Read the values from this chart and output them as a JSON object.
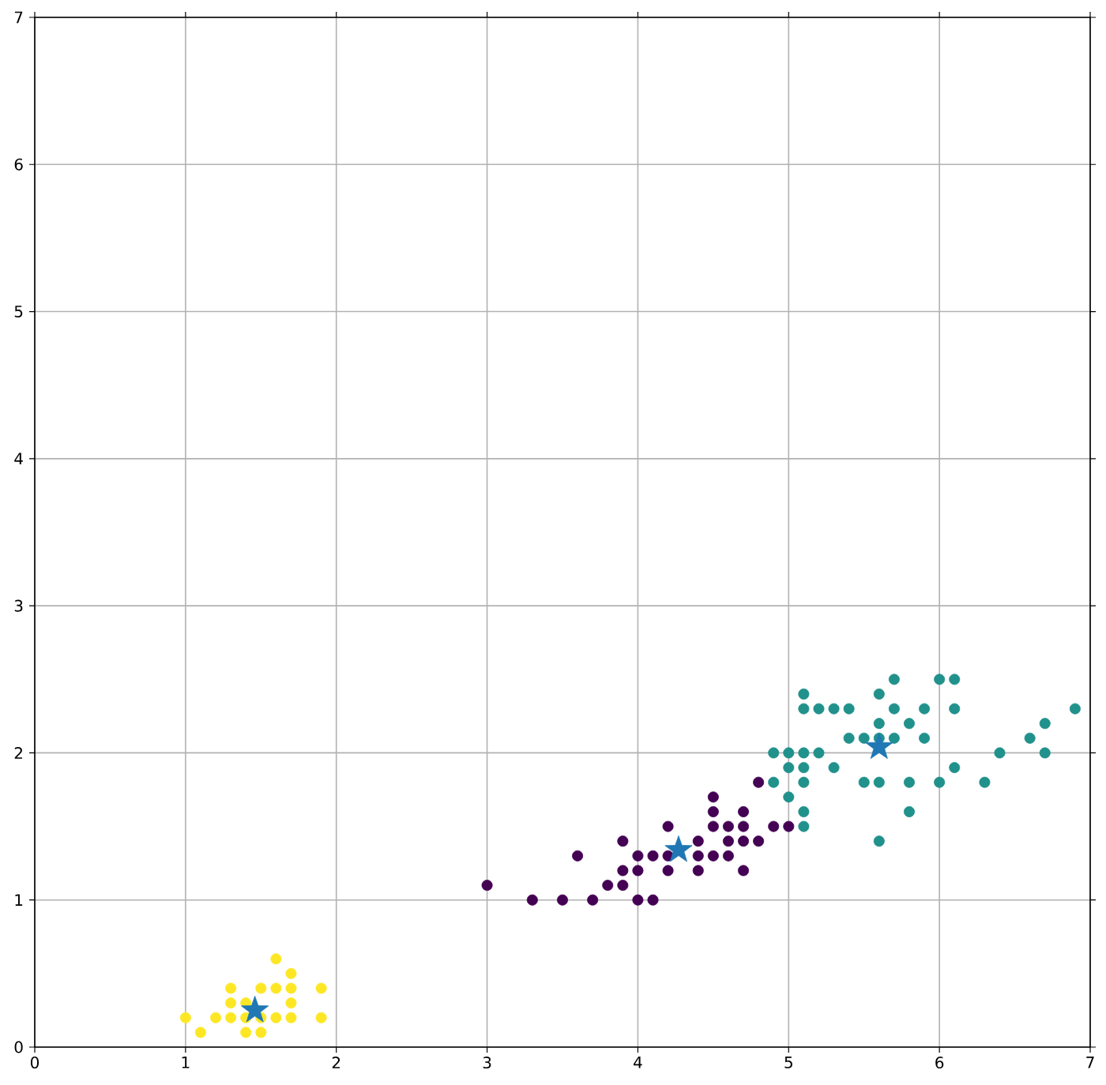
{
  "chart_data": {
    "type": "scatter",
    "xlim": [
      0,
      7
    ],
    "ylim": [
      0,
      7
    ],
    "xticks": [
      0,
      1,
      2,
      3,
      4,
      5,
      6,
      7
    ],
    "yticks": [
      0,
      1,
      2,
      3,
      4,
      5,
      6,
      7
    ],
    "grid": true,
    "marker": "circle",
    "series": [
      {
        "color": "#fde725",
        "x": [
          1.0,
          1.1,
          1.2,
          1.3,
          1.3,
          1.3,
          1.4,
          1.4,
          1.4,
          1.5,
          1.5,
          1.5,
          1.6,
          1.6,
          1.6,
          1.7,
          1.7,
          1.7,
          1.7,
          1.9,
          1.9
        ],
        "values": [
          0.2,
          0.1,
          0.2,
          0.2,
          0.3,
          0.4,
          0.2,
          0.3,
          0.1,
          0.4,
          0.2,
          0.1,
          0.6,
          0.4,
          0.2,
          0.5,
          0.4,
          0.3,
          0.2,
          0.4,
          0.2
        ]
      },
      {
        "color": "#440154",
        "x": [
          3.0,
          3.3,
          3.5,
          3.6,
          3.7,
          3.8,
          3.9,
          3.9,
          3.9,
          4.0,
          4.0,
          4.0,
          4.1,
          4.1,
          4.2,
          4.2,
          4.2,
          4.4,
          4.4,
          4.4,
          4.5,
          4.5,
          4.5,
          4.5,
          4.6,
          4.6,
          4.6,
          4.7,
          4.7,
          4.7,
          4.7,
          4.8,
          4.8,
          4.9,
          5.0
        ],
        "values": [
          1.1,
          1.0,
          1.0,
          1.3,
          1.0,
          1.1,
          1.1,
          1.2,
          1.4,
          1.0,
          1.2,
          1.3,
          1.0,
          1.3,
          1.2,
          1.3,
          1.5,
          1.2,
          1.3,
          1.4,
          1.3,
          1.5,
          1.6,
          1.7,
          1.3,
          1.4,
          1.5,
          1.2,
          1.4,
          1.5,
          1.6,
          1.4,
          1.8,
          1.5,
          1.5
        ]
      },
      {
        "color": "#21918c",
        "x": [
          4.9,
          4.9,
          5.0,
          5.0,
          5.0,
          5.1,
          5.1,
          5.1,
          5.1,
          5.1,
          5.1,
          5.1,
          5.2,
          5.2,
          5.3,
          5.3,
          5.4,
          5.4,
          5.5,
          5.5,
          5.6,
          5.6,
          5.6,
          5.6,
          5.6,
          5.7,
          5.7,
          5.7,
          5.8,
          5.8,
          5.8,
          5.9,
          5.9,
          6.0,
          6.0,
          6.1,
          6.1,
          6.1,
          6.3,
          6.4,
          6.6,
          6.7,
          6.7,
          6.9
        ],
        "values": [
          2.0,
          1.8,
          2.0,
          1.9,
          1.7,
          2.4,
          2.3,
          2.0,
          1.9,
          1.8,
          1.6,
          1.5,
          2.3,
          2.0,
          2.3,
          1.9,
          2.3,
          2.1,
          2.1,
          1.8,
          2.4,
          2.2,
          2.1,
          1.8,
          1.4,
          2.5,
          2.3,
          2.1,
          2.2,
          1.8,
          1.6,
          2.3,
          2.1,
          2.5,
          1.8,
          2.5,
          2.3,
          1.9,
          1.8,
          2.0,
          2.1,
          2.2,
          2.0,
          2.3
        ]
      },
      {
        "color": "#1f77b4",
        "marker": "star",
        "x": [
          1.46,
          4.27,
          5.6
        ],
        "values": [
          0.25,
          1.34,
          2.04
        ]
      }
    ]
  }
}
